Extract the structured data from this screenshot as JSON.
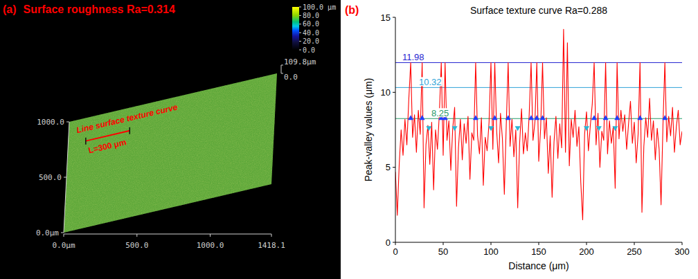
{
  "chart_data": [
    {
      "type": "surface",
      "panel_label": "(a)",
      "title": "Surface roughness Ra=0.314",
      "color": "#5ea83a",
      "xlim": [
        0,
        1418.1
      ],
      "xticks": [
        {
          "value": 0,
          "label": "0.0μm"
        },
        {
          "value": 500,
          "label": "500.0"
        },
        {
          "value": 1000,
          "label": "1000.0"
        },
        {
          "value": 1418.1,
          "label": "1418.1"
        }
      ],
      "ylim": [
        0,
        1000
      ],
      "yticks": [
        {
          "value": 0,
          "label": "0.0μm"
        },
        {
          "value": 500,
          "label": "500.0"
        },
        {
          "value": 1000,
          "label": "1000.0"
        }
      ],
      "zlim": [
        0,
        109.8
      ],
      "zticks": [
        {
          "value": 0,
          "label": "0.0"
        },
        {
          "value": 109.8,
          "label": "109.8μm"
        }
      ],
      "colorbar": {
        "range": [
          0,
          100
        ],
        "ticks": [
          {
            "value": 100,
            "label": "100.0 μm"
          },
          {
            "value": 80,
            "label": "80.0"
          },
          {
            "value": 60,
            "label": "60.0"
          },
          {
            "value": 40,
            "label": "40.0"
          },
          {
            "value": 20,
            "label": "20.0"
          },
          {
            "value": 0,
            "label": "0.0"
          }
        ]
      },
      "annotations": [
        {
          "text": "Line surface texture curve"
        },
        {
          "text": "L=300 μm",
          "length": 300
        }
      ]
    },
    {
      "type": "line",
      "panel_label": "(b)",
      "title": "Surface texture curve Ra=0.288",
      "x_label": "Distance (μm)",
      "y_label": "Peak-valley values (μm)",
      "xlim": [
        0,
        300
      ],
      "xticks": [
        0,
        50,
        100,
        150,
        200,
        250,
        300
      ],
      "ylim": [
        0,
        15
      ],
      "yticks": [
        0,
        5,
        10,
        15
      ],
      "grid": false,
      "reference_lines": [
        {
          "value": 11.98,
          "color": "#1f1fd0"
        },
        {
          "value": 10.32,
          "color": "#2fa3d8"
        },
        {
          "value": 8.25,
          "color": "#2a9a6a"
        }
      ],
      "series": [
        {
          "type": "line",
          "color": "#ff0000",
          "x": [
            0,
            2,
            4,
            6,
            8,
            10,
            12,
            14,
            16,
            18,
            20,
            22,
            24,
            26,
            28,
            30,
            32,
            34,
            36,
            38,
            40,
            42,
            44,
            46,
            48,
            50,
            52,
            54,
            56,
            58,
            60,
            62,
            64,
            66,
            68,
            70,
            72,
            74,
            76,
            78,
            80,
            82,
            84,
            86,
            88,
            90,
            92,
            94,
            96,
            98,
            100,
            102,
            104,
            106,
            108,
            110,
            112,
            114,
            116,
            118,
            120,
            122,
            124,
            126,
            128,
            130,
            132,
            134,
            136,
            138,
            140,
            142,
            144,
            146,
            148,
            150,
            152,
            154,
            156,
            158,
            160,
            162,
            164,
            166,
            168,
            170,
            172,
            174,
            176,
            178,
            180,
            182,
            184,
            186,
            188,
            190,
            192,
            194,
            196,
            198,
            200,
            202,
            204,
            206,
            208,
            210,
            212,
            214,
            216,
            218,
            220,
            222,
            224,
            226,
            228,
            230,
            232,
            234,
            236,
            238,
            240,
            242,
            244,
            246,
            248,
            250,
            252,
            254,
            256,
            258,
            260,
            262,
            264,
            266,
            268,
            270,
            272,
            274,
            276,
            278,
            280,
            282,
            284,
            286,
            288,
            290,
            292,
            294,
            296,
            298,
            300
          ],
          "values": [
            4.7,
            1.8,
            5.2,
            7.5,
            5.8,
            8.2,
            6.5,
            9.5,
            11.98,
            7.0,
            8.5,
            6.0,
            8.8,
            7.2,
            11.98,
            2.3,
            6.5,
            7.8,
            5.2,
            8.0,
            3.5,
            7.5,
            6.2,
            8.6,
            11.98,
            5.8,
            11.98,
            6.8,
            8.1,
            4.8,
            7.6,
            9.0,
            2.4,
            6.3,
            8.2,
            5.5,
            7.9,
            6.6,
            8.4,
            4.2,
            7.3,
            6.8,
            11.98,
            7.1,
            5.9,
            8.3,
            3.8,
            7.0,
            6.1,
            8.0,
            11.98,
            6.2,
            11.98,
            7.4,
            5.3,
            8.6,
            6.9,
            3.2,
            7.8,
            11.98,
            6.4,
            8.2,
            5.7,
            7.5,
            2.3,
            6.6,
            8.9,
            5.9,
            7.3,
            6.1,
            8.5,
            11.98,
            6.8,
            8.0,
            11.98,
            5.4,
            7.6,
            11.98,
            6.9,
            8.3,
            4.6,
            7.1,
            3.0,
            6.7,
            8.4,
            5.6,
            7.9,
            6.3,
            14.2,
            6.0,
            13.3,
            5.1,
            8.2,
            7.0,
            8.8,
            6.4,
            7.7,
            4.0,
            1.5,
            7.2,
            8.7,
            6.1,
            7.8,
            9.2,
            11.98,
            6.5,
            8.6,
            5.0,
            7.4,
            6.8,
            11.98,
            5.9,
            8.1,
            6.6,
            7.7,
            3.6,
            11.98,
            6.9,
            8.8,
            7.4,
            8.5,
            6.2,
            7.9,
            9.4,
            6.6,
            8.0,
            5.3,
            7.2,
            11.98,
            2.0,
            6.4,
            8.3,
            7.0,
            9.6,
            6.8,
            8.1,
            5.5,
            7.6,
            6.2,
            2.5,
            7.8,
            11.98,
            6.7,
            8.4,
            7.1,
            9.0,
            6.0,
            7.7,
            8.8,
            6.5,
            7.4
          ]
        },
        {
          "type": "scatter",
          "marker": "triangle-up",
          "color": "#1f3fff",
          "x": [
            16,
            28,
            48,
            52,
            84,
            104,
            118,
            142,
            148,
            154,
            208,
            220,
            232,
            256,
            282
          ],
          "values": [
            8.25,
            8.25,
            8.25,
            8.25,
            8.25,
            8.25,
            8.25,
            8.25,
            8.25,
            8.25,
            8.25,
            8.25,
            8.25,
            8.25,
            8.25
          ]
        },
        {
          "type": "scatter",
          "marker": "triangle-down",
          "color": "#29b6d6",
          "x": [
            35,
            62,
            100,
            128,
            200,
            213,
            230
          ],
          "values": [
            7.6,
            7.6,
            7.6,
            7.6,
            7.6,
            7.6,
            7.6
          ]
        }
      ]
    }
  ]
}
